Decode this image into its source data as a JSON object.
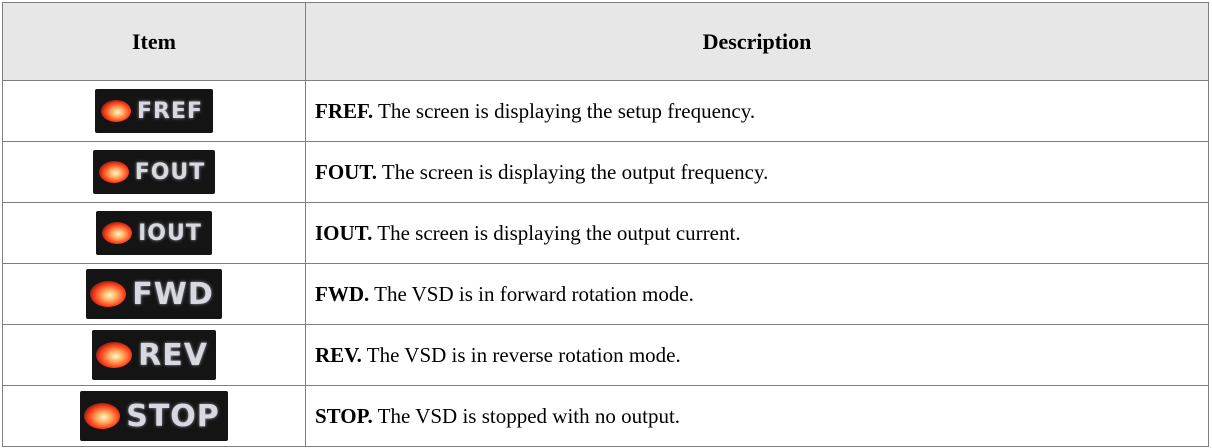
{
  "table": {
    "headers": [
      "Item",
      "Description"
    ],
    "rows": [
      {
        "indicator": "FREF",
        "term": "FREF.",
        "text": "The screen is displaying the setup frequency."
      },
      {
        "indicator": "FOUT",
        "term": "FOUT.",
        "text": "The screen is displaying the output frequency."
      },
      {
        "indicator": "IOUT",
        "term": "IOUT.",
        "text": "The screen is displaying the output current."
      },
      {
        "indicator": "FWD",
        "term": "FWD.",
        "text": "The VSD is in forward rotation mode."
      },
      {
        "indicator": "REV",
        "term": "REV.",
        "text": "The VSD is in reverse rotation mode."
      },
      {
        "indicator": "STOP",
        "term": "STOP.",
        "text": "The VSD is stopped with no output."
      }
    ]
  }
}
